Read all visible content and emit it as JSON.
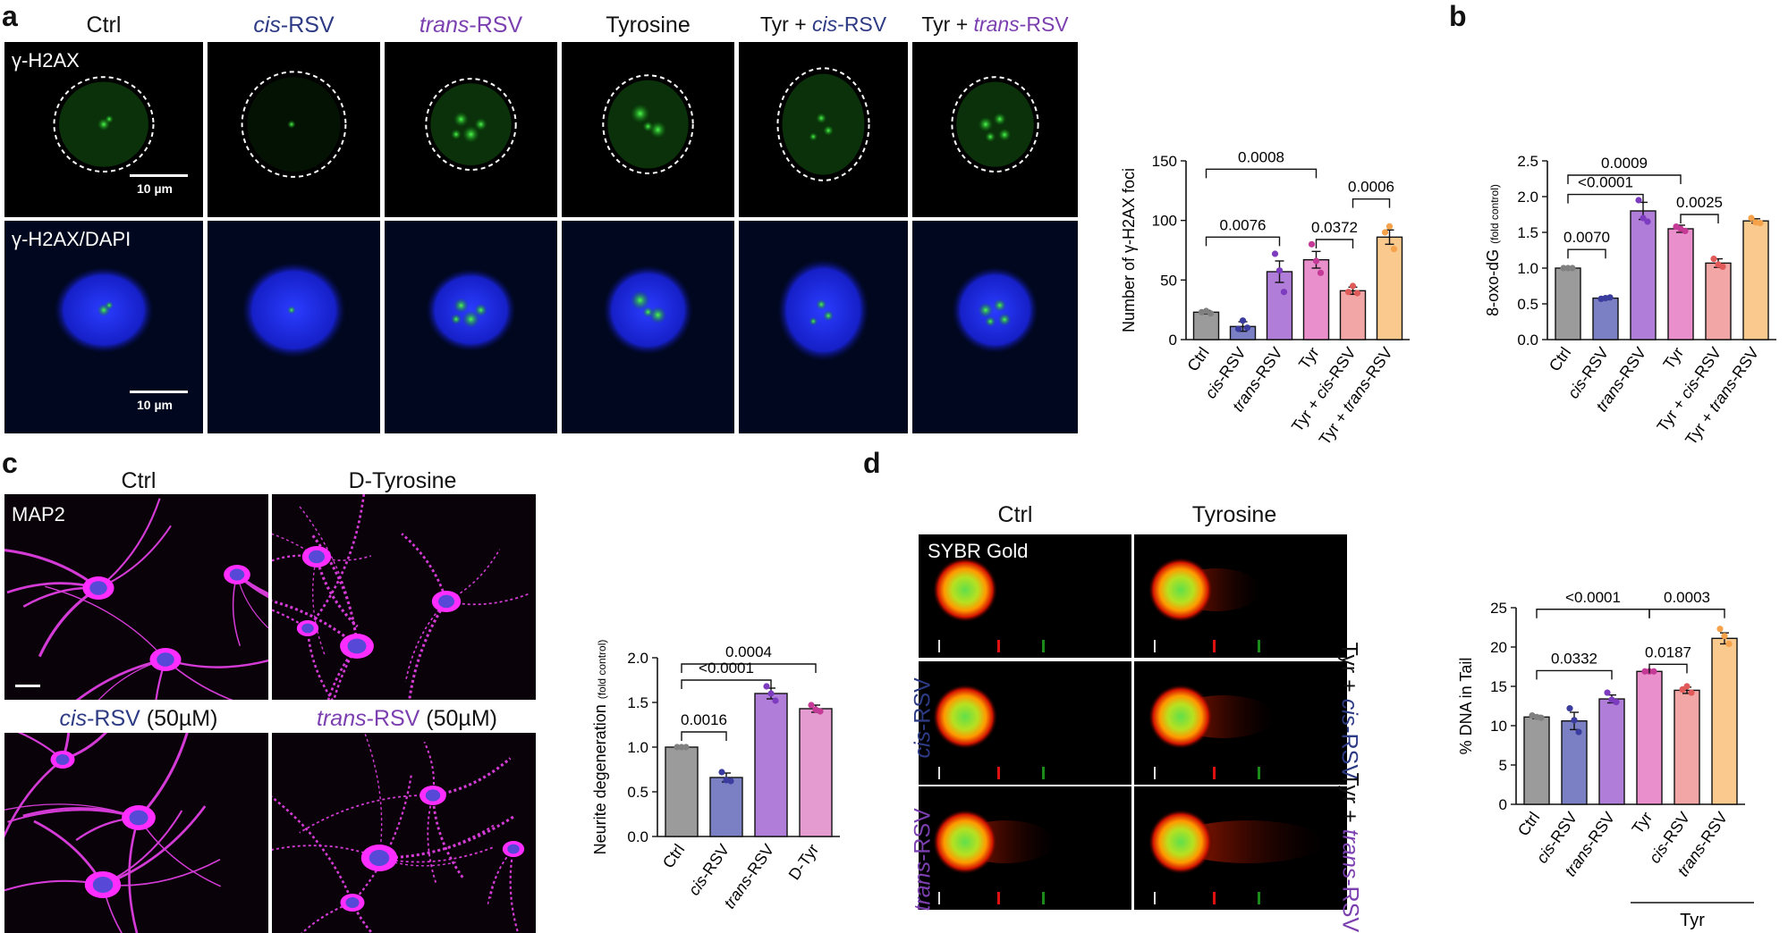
{
  "panel_a": {
    "letter": "a",
    "columns": [
      {
        "pre": "",
        "it": "",
        "post": "Ctrl",
        "color": "#111"
      },
      {
        "pre": "",
        "it": "cis",
        "post": "-RSV",
        "color": "#2d3a84"
      },
      {
        "pre": "",
        "it": "trans",
        "post": "-RSV",
        "color": "#7b3fb0"
      },
      {
        "pre": "",
        "it": "",
        "post": "Tyrosine",
        "color": "#111"
      },
      {
        "pre": "Tyr + ",
        "it": "cis",
        "post": "-RSV",
        "color": "#2d3a84"
      },
      {
        "pre": "Tyr + ",
        "it": "trans",
        "post": "-RSV",
        "color": "#7b3fb0"
      }
    ],
    "row1_label": "γ-H2AX",
    "row2_label": "γ-H2AX/DAPI",
    "scalebar": "10 µm"
  },
  "panel_b": {
    "letter": "b"
  },
  "panel_c": {
    "letter": "c",
    "titles": {
      "ctrl": "Ctrl",
      "dtyr": "D-Tyrosine",
      "cis_it": "cis",
      "cis_post": "-RSV",
      "cis_conc": " (50µM)",
      "trans_it": "trans",
      "trans_post": "-RSV",
      "trans_conc": " (50µM)"
    },
    "stain": "MAP2"
  },
  "panel_d": {
    "letter": "d",
    "titles": {
      "ctrl": "Ctrl",
      "tyr": "Tyrosine"
    },
    "stain": "SYBR Gold",
    "left_labels": [
      {
        "it": "cis",
        "post": "-RSV"
      },
      {
        "it": "trans",
        "post": "-RSV"
      }
    ],
    "right_labels": [
      {
        "pre": "Tyr + ",
        "it": "cis",
        "post": "-RSV"
      },
      {
        "pre": "Tyr + ",
        "it": "trans",
        "post": "-RSV"
      }
    ],
    "group_label": "Tyr"
  },
  "chart_data": [
    {
      "id": "a",
      "type": "bar",
      "ylabel": "Number of γ-H2AX foci",
      "ylim": [
        0,
        150
      ],
      "yticks": [
        0,
        50,
        100,
        150
      ],
      "categories": [
        {
          "pre": "",
          "it": "",
          "post": "Ctrl"
        },
        {
          "pre": "",
          "it": "cis",
          "post": "-RSV"
        },
        {
          "pre": "",
          "it": "trans",
          "post": "-RSV"
        },
        {
          "pre": "",
          "it": "",
          "post": "Tyr"
        },
        {
          "pre": "Tyr + ",
          "it": "cis",
          "post": "-RSV"
        },
        {
          "pre": "Tyr + ",
          "it": "trans",
          "post": "-RSV"
        }
      ],
      "values": [
        23,
        11,
        57,
        67,
        41,
        86
      ],
      "errors": [
        1.5,
        4,
        9,
        7,
        3,
        6
      ],
      "points": [
        [
          23,
          24,
          22
        ],
        [
          9,
          16,
          10
        ],
        [
          72,
          58,
          40
        ],
        [
          80,
          66,
          56
        ],
        [
          40,
          45,
          39
        ],
        [
          90,
          95,
          76
        ]
      ],
      "colors": [
        "#9b9b9b",
        "#7b7fc4",
        "#b07dd8",
        "#e98fcb",
        "#f2a6a6",
        "#f9c98e"
      ],
      "dot_colors": [
        "#808080",
        "#3a3d9e",
        "#7d3bbf",
        "#c43a96",
        "#e05a5a",
        "#f5a24a"
      ],
      "brackets": [
        {
          "from": 0,
          "to": 3,
          "label": "0.0008"
        },
        {
          "from": 0,
          "to": 2,
          "label": "0.0076"
        },
        {
          "from": 3,
          "to": 4,
          "label": "0.0372"
        },
        {
          "from": 4,
          "to": 5,
          "label": "0.0006"
        }
      ]
    },
    {
      "id": "b",
      "type": "bar",
      "ylabel": "8-oxo-dG",
      "ylabel_small": "(fold control)",
      "ylim": [
        0,
        2.5
      ],
      "yticks": [
        0.0,
        0.5,
        1.0,
        1.5,
        2.0,
        2.5
      ],
      "categories": [
        {
          "pre": "",
          "it": "",
          "post": "Ctrl"
        },
        {
          "pre": "",
          "it": "cis",
          "post": "-RSV"
        },
        {
          "pre": "",
          "it": "trans",
          "post": "-RSV"
        },
        {
          "pre": "",
          "it": "",
          "post": "Tyr"
        },
        {
          "pre": "Tyr + ",
          "it": "cis",
          "post": "-RSV"
        },
        {
          "pre": "Tyr + ",
          "it": "trans",
          "post": "-RSV"
        }
      ],
      "values": [
        1.0,
        0.58,
        1.8,
        1.55,
        1.07,
        1.66
      ],
      "errors": [
        0.01,
        0.02,
        0.12,
        0.05,
        0.06,
        0.03
      ],
      "points": [
        [
          1.0,
          1.0,
          1.0
        ],
        [
          0.57,
          0.58,
          0.59
        ],
        [
          1.95,
          1.7,
          1.65
        ],
        [
          1.58,
          1.55,
          1.52
        ],
        [
          1.13,
          1.05,
          1.02
        ],
        [
          1.7,
          1.64,
          1.63
        ]
      ],
      "colors": [
        "#9b9b9b",
        "#7b7fc4",
        "#b07dd8",
        "#e98fcb",
        "#f2a6a6",
        "#f9c98e"
      ],
      "dot_colors": [
        "#808080",
        "#3a3d9e",
        "#7d3bbf",
        "#c43a96",
        "#e05a5a",
        "#f5a24a"
      ],
      "brackets": [
        {
          "from": 0,
          "to": 3,
          "label": "0.0009"
        },
        {
          "from": 0,
          "to": 2,
          "label": "<0.0001"
        },
        {
          "from": 0,
          "to": 1,
          "label": "0.0070"
        },
        {
          "from": 3,
          "to": 4,
          "label": "0.0025"
        }
      ]
    },
    {
      "id": "c",
      "type": "bar",
      "ylabel": "Neurite degeneration",
      "ylabel_small": "(fold control)",
      "ylim": [
        0,
        2.0
      ],
      "yticks": [
        0.0,
        0.5,
        1.0,
        1.5,
        2.0
      ],
      "categories": [
        {
          "pre": "",
          "it": "",
          "post": "Ctrl"
        },
        {
          "pre": "",
          "it": "cis",
          "post": "-RSV"
        },
        {
          "pre": "",
          "it": "trans",
          "post": "-RSV"
        },
        {
          "pre": "",
          "it": "",
          "post": "D-Tyr"
        }
      ],
      "values": [
        1.0,
        0.66,
        1.6,
        1.43
      ],
      "errors": [
        0.01,
        0.05,
        0.06,
        0.04
      ],
      "points": [
        [
          1.0,
          1.0,
          1.0
        ],
        [
          0.72,
          0.63,
          0.62
        ],
        [
          1.68,
          1.6,
          1.52
        ],
        [
          1.47,
          1.42,
          1.4
        ]
      ],
      "colors": [
        "#9b9b9b",
        "#7b7fc4",
        "#b07dd8",
        "#e39bd0"
      ],
      "dot_colors": [
        "#808080",
        "#3a3d9e",
        "#7d3bbf",
        "#c43a96"
      ],
      "brackets": [
        {
          "from": 0,
          "to": 3,
          "label": "0.0004"
        },
        {
          "from": 0,
          "to": 2,
          "label": "<0.0001"
        },
        {
          "from": 0,
          "to": 1,
          "label": "0.0016"
        }
      ]
    },
    {
      "id": "d",
      "type": "bar",
      "ylabel": "% DNA in Tail",
      "ylim": [
        0,
        25
      ],
      "yticks": [
        0,
        5,
        10,
        15,
        20,
        25
      ],
      "categories": [
        {
          "pre": "",
          "it": "",
          "post": "Ctrl"
        },
        {
          "pre": "",
          "it": "cis",
          "post": "-RSV"
        },
        {
          "pre": "",
          "it": "trans",
          "post": "-RSV"
        },
        {
          "pre": "",
          "it": "",
          "post": "Tyr"
        },
        {
          "pre": "",
          "it": "cis",
          "post": "-RSV"
        },
        {
          "pre": "",
          "it": "trans",
          "post": "-RSV"
        }
      ],
      "values": [
        11.1,
        10.6,
        13.4,
        16.9,
        14.5,
        21.1
      ],
      "errors": [
        0.2,
        1.1,
        0.5,
        0.1,
        0.4,
        0.7
      ],
      "points": [
        [
          11.3,
          11.1,
          11.0
        ],
        [
          12.2,
          10.7,
          9.2
        ],
        [
          14.2,
          13.3,
          13.0
        ],
        [
          16.9,
          16.9,
          16.9
        ],
        [
          14.6,
          15.0,
          14.2
        ],
        [
          22.3,
          21.4,
          20.4
        ]
      ],
      "colors": [
        "#9b9b9b",
        "#7b7fc4",
        "#b07dd8",
        "#e98fcb",
        "#f2a6a6",
        "#f9c98e"
      ],
      "dot_colors": [
        "#808080",
        "#3a3d9e",
        "#7d3bbf",
        "#c43a96",
        "#e05a5a",
        "#f5a24a"
      ],
      "brackets": [
        {
          "from": 0,
          "to": 3,
          "label": "<0.0001"
        },
        {
          "from": 3,
          "to": 5,
          "label": "0.0003"
        },
        {
          "from": 0,
          "to": 2,
          "label": "0.0332"
        },
        {
          "from": 3,
          "to": 4,
          "label": "0.0187"
        }
      ]
    }
  ]
}
